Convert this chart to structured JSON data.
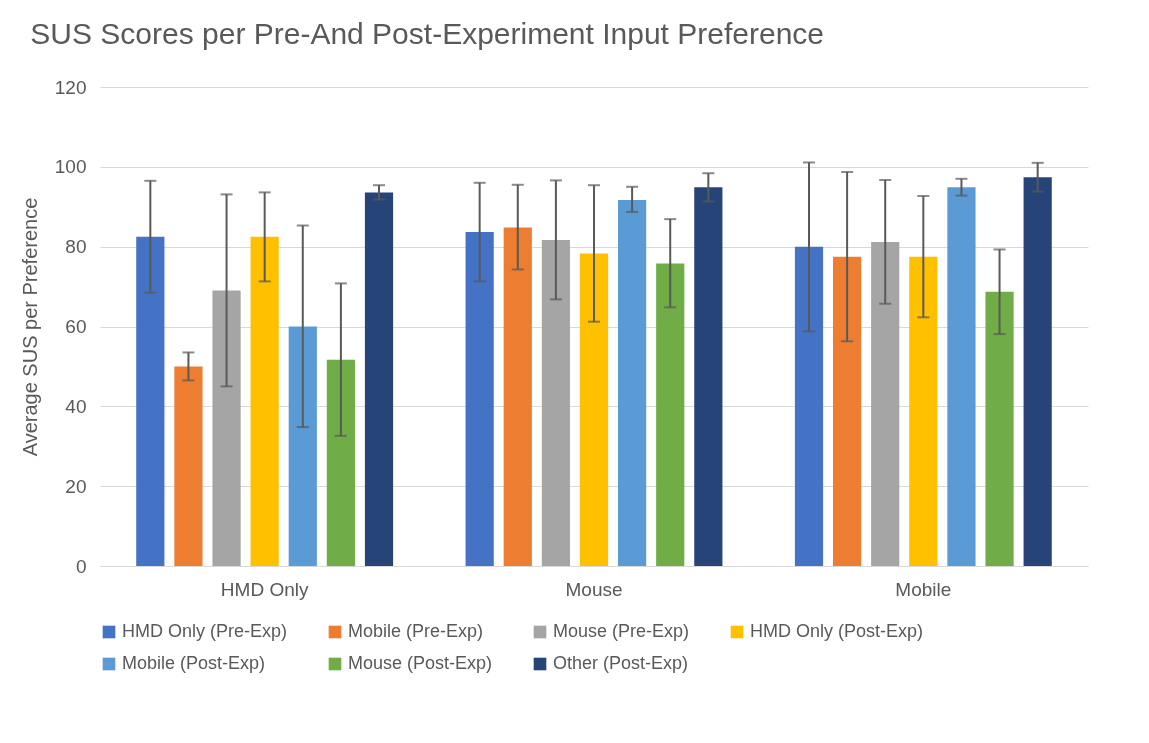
{
  "chart_data": {
    "type": "bar",
    "title": "SUS Scores per Pre-And Post-Experiment Input Preference",
    "ylabel": "Average SUS per Preference",
    "categories": [
      "HMD Only",
      "Mouse",
      "Mobile"
    ],
    "series": [
      {
        "name": "HMD Only (Pre-Exp)",
        "color": "#4472c4",
        "values": [
          82.5,
          83.7,
          80
        ],
        "errors": [
          [
            68.5,
            96.5
          ],
          [
            71.3,
            96
          ],
          [
            58.8,
            101.1
          ]
        ]
      },
      {
        "name": "Mobile (Pre-Exp)",
        "color": "#ed7d31",
        "values": [
          50,
          84.8,
          77.5
        ],
        "errors": [
          [
            46.5,
            53.5
          ],
          [
            74.3,
            95.5
          ],
          [
            56.3,
            98.7
          ]
        ]
      },
      {
        "name": "Mouse (Pre-Exp)",
        "color": "#a5a5a5",
        "values": [
          69,
          81.7,
          81.2
        ],
        "errors": [
          [
            45,
            93.1
          ],
          [
            66.8,
            96.6
          ],
          [
            65.7,
            96.7
          ]
        ]
      },
      {
        "name": "HMD Only (Post-Exp)",
        "color": "#ffc000",
        "values": [
          82.5,
          78.3,
          77.5
        ],
        "errors": [
          [
            71.3,
            93.6
          ],
          [
            61.2,
            95.4
          ],
          [
            62.3,
            92.7
          ]
        ]
      },
      {
        "name": "Mobile (Post-Exp)",
        "color": "#5b9bd5",
        "values": [
          60,
          91.7,
          94.9
        ],
        "errors": [
          [
            34.8,
            85.3
          ],
          [
            88.7,
            95
          ],
          [
            92.8,
            97
          ]
        ]
      },
      {
        "name": "Mouse (Post-Exp)",
        "color": "#70ad47",
        "values": [
          51.7,
          75.8,
          68.7
        ],
        "errors": [
          [
            32.6,
            70.8
          ],
          [
            64.8,
            86.9
          ],
          [
            58.1,
            79.3
          ]
        ]
      },
      {
        "name": "Other (Post-Exp)",
        "color": "#264478",
        "values": [
          93.6,
          94.9,
          97.4
        ],
        "errors": [
          [
            91.8,
            95.4
          ],
          [
            91.3,
            98.4
          ],
          [
            93.8,
            101
          ]
        ]
      }
    ],
    "ylim": [
      0,
      120
    ],
    "yticks": [
      0,
      20,
      40,
      60,
      80,
      100,
      120
    ],
    "grid": "y",
    "legend": "bottom"
  }
}
